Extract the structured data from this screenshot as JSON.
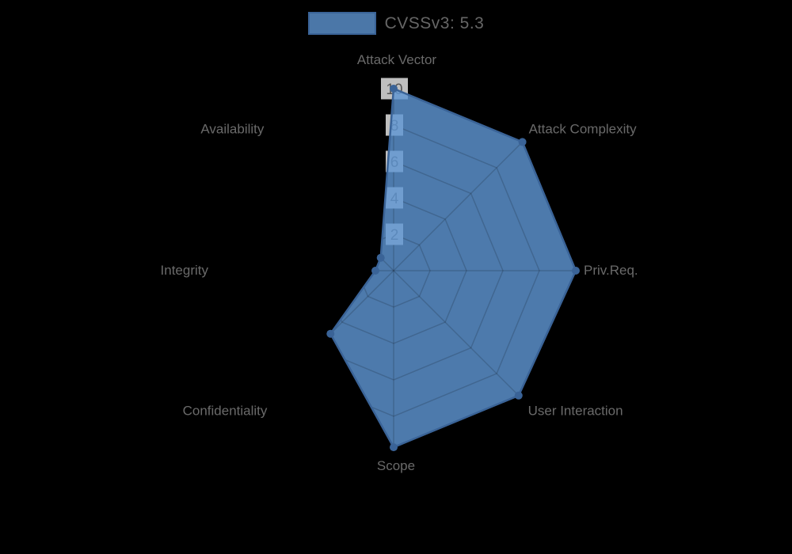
{
  "chart_data": {
    "type": "radar",
    "legend": {
      "label": "CVSSv3: 5.3",
      "position": "top"
    },
    "categories": [
      "Attack Vector",
      "Attack Complexity",
      "Priv.Req.",
      "User Interaction",
      "Scope",
      "Confidentiality",
      "Integrity",
      "Availability"
    ],
    "series": [
      {
        "name": "CVSSv3: 5.3",
        "values": [
          10,
          10,
          10,
          9.7,
          9.7,
          4.9,
          1,
          1
        ]
      }
    ],
    "scale": {
      "min": 0,
      "max": 10,
      "tick_step": 2,
      "tick_labels": [
        "2",
        "4",
        "6",
        "8",
        "10"
      ]
    },
    "grid_shape": "polygon",
    "colors": {
      "background": "#000000",
      "series_fill": "rgba(94,149,210,0.82)",
      "series_stroke": "#3a6397",
      "point": "#3a6397",
      "grid_line": "rgba(0,0,0,0.16)",
      "tick_text": "#555555",
      "tick_backdrop": "rgba(255,255,255,0.75)",
      "axis_label": "#6a6a6a",
      "legend_text": "#666666"
    }
  }
}
